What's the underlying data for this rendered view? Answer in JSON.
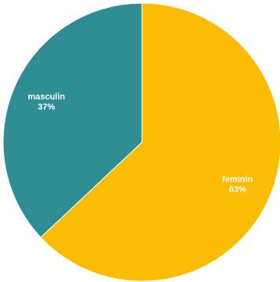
{
  "chart_data": {
    "type": "pie",
    "slices": [
      {
        "label": "feminin",
        "value": 63,
        "display": "63%",
        "color": "#FBBC04"
      },
      {
        "label": "masculin",
        "value": 37,
        "display": "37%",
        "color": "#2E8E94"
      }
    ],
    "title": "",
    "legend": "none"
  }
}
